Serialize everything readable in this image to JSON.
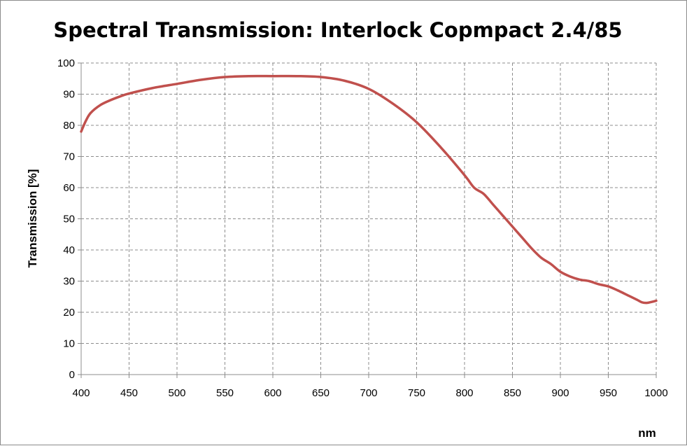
{
  "chart_data": {
    "type": "line",
    "title": "Spectral Transmission: Interlock Copmpact 2.4/85",
    "xlabel": "nm",
    "ylabel": "Transmission  [%]",
    "xlim": [
      400,
      1000
    ],
    "ylim": [
      0,
      100
    ],
    "x_ticks": [
      400,
      450,
      500,
      550,
      600,
      650,
      700,
      750,
      800,
      850,
      900,
      950,
      1000
    ],
    "y_ticks": [
      0,
      10,
      20,
      30,
      40,
      50,
      60,
      70,
      80,
      90,
      100
    ],
    "grid": true,
    "legend": "none",
    "series": [
      {
        "color": "#c0504d",
        "x": [
          400,
          405,
          410,
          420,
          430,
          440,
          450,
          475,
          500,
          525,
          550,
          575,
          600,
          625,
          650,
          675,
          700,
          725,
          750,
          775,
          800,
          810,
          820,
          830,
          840,
          850,
          860,
          870,
          880,
          890,
          900,
          910,
          920,
          930,
          940,
          950,
          960,
          970,
          980,
          985,
          990,
          995,
          1000
        ],
        "y": [
          78,
          81.5,
          84,
          86.5,
          88,
          89.2,
          90.2,
          92,
          93.3,
          94.6,
          95.5,
          95.8,
          95.8,
          95.8,
          95.5,
          94.3,
          91.7,
          87,
          81,
          73,
          64,
          60,
          58,
          54.5,
          51,
          47.5,
          44,
          40.5,
          37.5,
          35.5,
          33,
          31.5,
          30.5,
          30,
          29,
          28.3,
          27,
          25.5,
          24,
          23.2,
          23,
          23.3,
          23.7
        ]
      }
    ]
  }
}
